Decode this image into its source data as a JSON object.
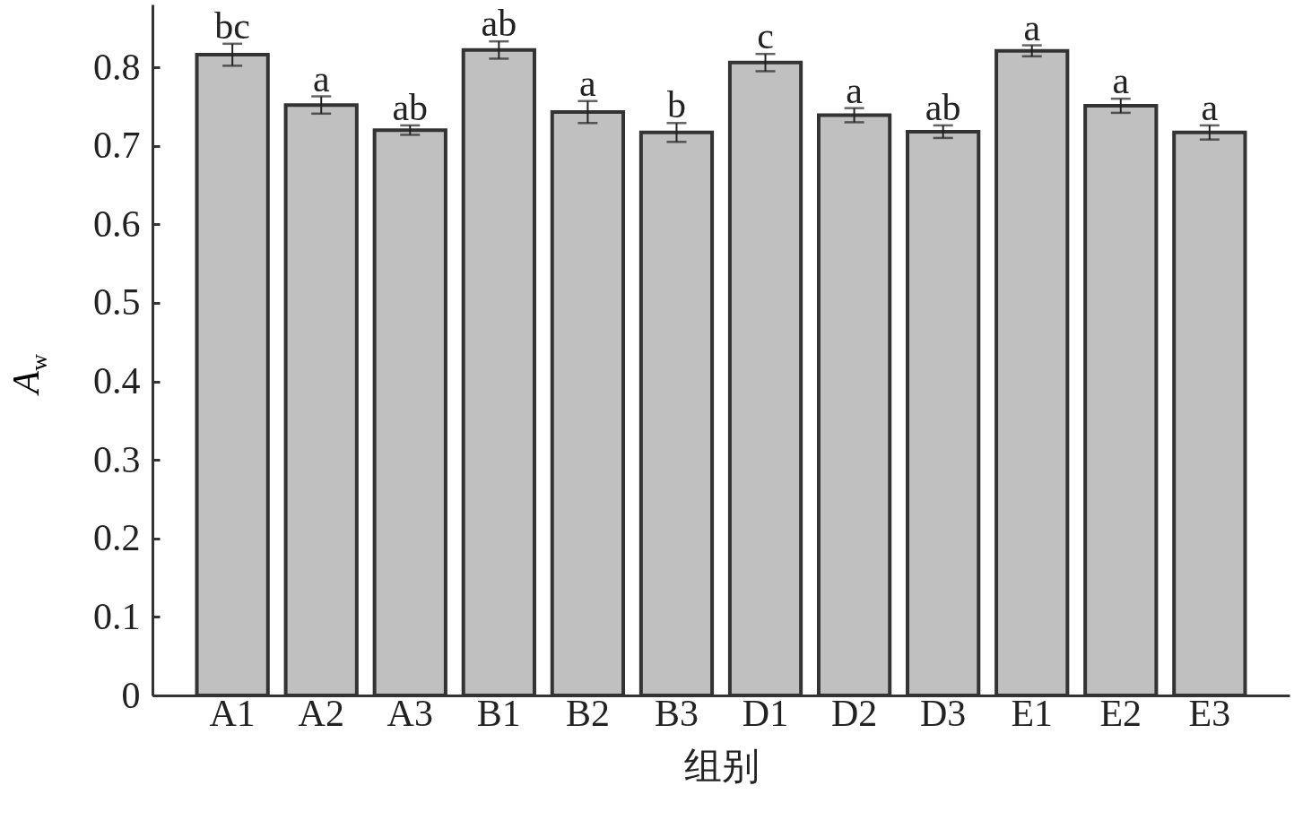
{
  "chart_data": {
    "type": "bar",
    "xlabel": "组别",
    "ylabel": "A$_{w}$",
    "categories": [
      "A1",
      "A2",
      "A3",
      "B1",
      "B2",
      "B3",
      "D1",
      "D2",
      "D3",
      "E1",
      "E2",
      "E3"
    ],
    "values": [
      0.816,
      0.752,
      0.72,
      0.822,
      0.743,
      0.717,
      0.806,
      0.739,
      0.718,
      0.821,
      0.751,
      0.717
    ],
    "errors": [
      0.014,
      0.011,
      0.006,
      0.011,
      0.014,
      0.012,
      0.011,
      0.009,
      0.008,
      0.007,
      0.009,
      0.009
    ],
    "color": "#c0c0c0",
    "ylim": [
      0,
      0.88
    ],
    "yticks": [
      0,
      0.1,
      0.2,
      0.3,
      0.4,
      0.5,
      0.6,
      0.7,
      0.8
    ],
    "grid": false,
    "annotations": [
      {
        "text": "bc",
        "x": "A1",
        "y": 0.83
      },
      {
        "text": "a",
        "x": "A2",
        "y": 0.763
      },
      {
        "text": "ab",
        "x": "A3",
        "y": 0.726
      },
      {
        "text": "ab",
        "x": "B1",
        "y": 0.833
      },
      {
        "text": "a",
        "x": "B2",
        "y": 0.757
      },
      {
        "text": "b",
        "x": "B3",
        "y": 0.729
      },
      {
        "text": "c",
        "x": "D1",
        "y": 0.817
      },
      {
        "text": "a",
        "x": "D2",
        "y": 0.748
      },
      {
        "text": "ab",
        "x": "D3",
        "y": 0.726
      },
      {
        "text": "a",
        "x": "E1",
        "y": 0.828
      },
      {
        "text": "a",
        "x": "E2",
        "y": 0.76
      },
      {
        "text": "a",
        "x": "E3",
        "y": 0.726
      }
    ]
  }
}
